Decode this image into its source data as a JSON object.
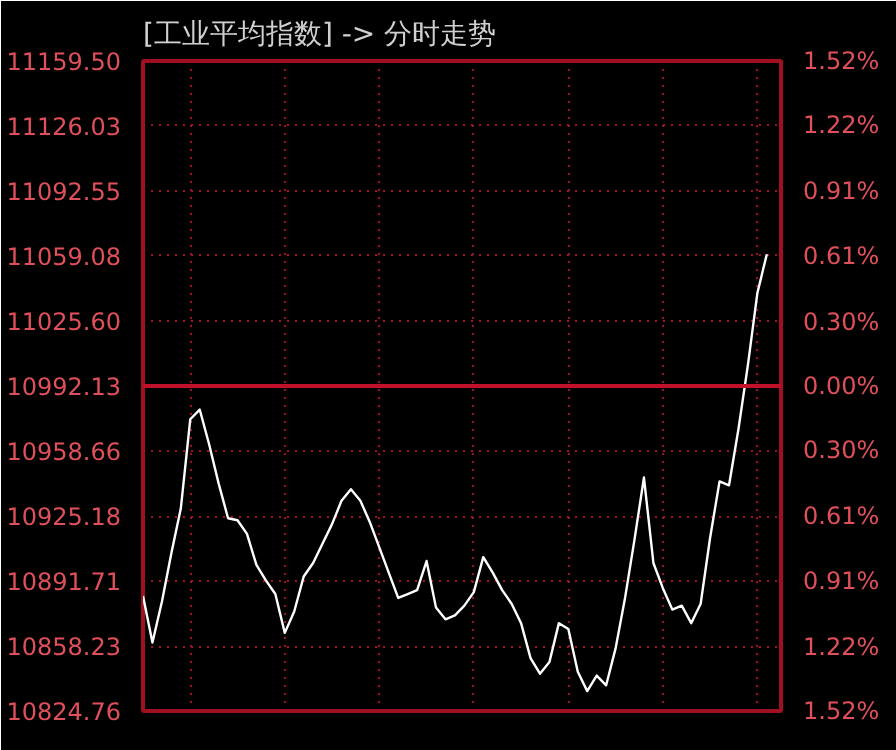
{
  "chart_data": {
    "type": "line",
    "title": "[工业平均指数] -> 分时走势",
    "categories": [
      null,
      null,
      null,
      null,
      null,
      null,
      null,
      null,
      null,
      null,
      null,
      null,
      null,
      null,
      null,
      null,
      null,
      null,
      null,
      null,
      null,
      null,
      null,
      null,
      null,
      null,
      null,
      null,
      null,
      null,
      null,
      null,
      null,
      null,
      null,
      null,
      null,
      null,
      null,
      null,
      null,
      null,
      null,
      null,
      null,
      null,
      null,
      null,
      null,
      null,
      null,
      null,
      null,
      null,
      null,
      null,
      null,
      null,
      null,
      null,
      null,
      null,
      null,
      null,
      null,
      null,
      null
    ],
    "series": [
      {
        "color": "#ffffff",
        "values": [
          10884,
          10860,
          10881,
          10906,
          10929,
          10975,
          10980,
          10962,
          10942,
          10924,
          10923,
          10916,
          10900,
          10892,
          10885,
          10865,
          10876,
          10894,
          10901,
          10911,
          10921,
          10933,
          10939,
          10933,
          10922,
          10909,
          10896,
          10883,
          10885,
          10887,
          10902,
          10878,
          10872,
          10874,
          10879,
          10886,
          10904,
          10896,
          10887,
          10880,
          10870,
          10852,
          10844,
          10850,
          10870,
          10867,
          10845,
          10835,
          10843,
          10838,
          10857,
          10883,
          10913,
          10945,
          10901,
          10888,
          10877,
          10879,
          10870,
          10880,
          10914,
          10943,
          10941,
          10970,
          11003,
          11040,
          11060
        ]
      }
    ],
    "ylim": [
      10824.76,
      11159.5
    ],
    "yticks": [
      {
        "value": 10824.76,
        "label": "10824.76"
      },
      {
        "value": 10858.23,
        "label": "10858.23"
      },
      {
        "value": 10891.71,
        "label": "10891.71"
      },
      {
        "value": 10925.18,
        "label": "10925.18"
      },
      {
        "value": 10958.66,
        "label": "10958.66"
      },
      {
        "value": 10992.13,
        "label": "10992.13"
      },
      {
        "value": 11025.6,
        "label": "11025.60"
      },
      {
        "value": 11059.08,
        "label": "11059.08"
      },
      {
        "value": 11092.55,
        "label": "11092.55"
      },
      {
        "value": 11126.03,
        "label": "11126.03"
      },
      {
        "value": 11159.5,
        "label": "11159.50"
      }
    ],
    "y2lim": [
      -1.52,
      1.52
    ],
    "y2ticks": [
      {
        "value": -1.52,
        "label": "1.52%"
      },
      {
        "value": -1.22,
        "label": "1.22%"
      },
      {
        "value": -0.91,
        "label": "0.91%"
      },
      {
        "value": -0.61,
        "label": "0.61%"
      },
      {
        "value": -0.3,
        "label": "0.30%"
      },
      {
        "value": 0,
        "label": "0.00%"
      },
      {
        "value": 0.3,
        "label": "0.30%"
      },
      {
        "value": 0.61,
        "label": "0.61%"
      },
      {
        "value": 0.91,
        "label": "0.91%"
      },
      {
        "value": 1.22,
        "label": "1.22%"
      },
      {
        "value": 1.52,
        "label": "1.52%"
      }
    ],
    "ref_lines": [
      {
        "axis": "y",
        "value": 10992.13,
        "color": "#c0102a"
      }
    ],
    "grid": true,
    "marker": "none",
    "line_style": "solid"
  }
}
